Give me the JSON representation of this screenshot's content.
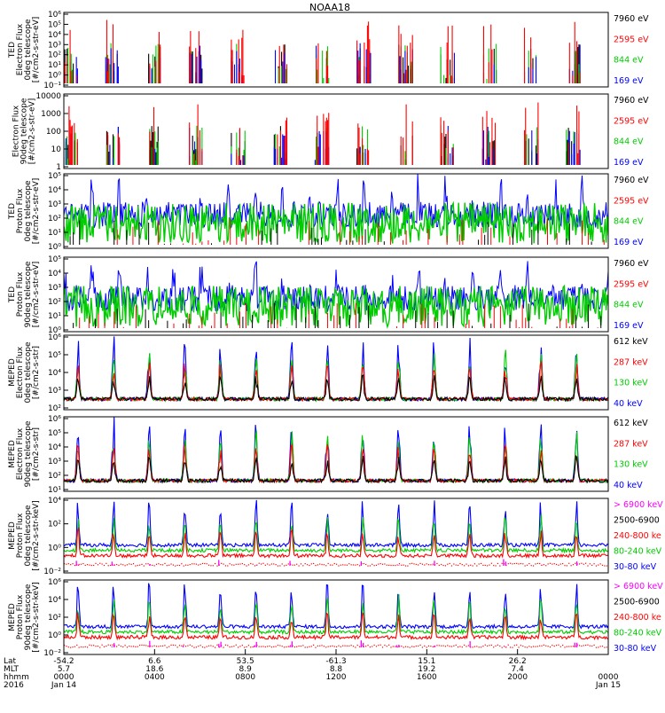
{
  "chart_data": {
    "type": "line",
    "title": "NOAA18",
    "panels": [
      {
        "ylabel": [
          "TED",
          "Electron Flux",
          "0deg telescope",
          "[#/cm2-s-str-eV]"
        ],
        "yticks": [
          "10⁻¹",
          "10⁰",
          "10¹",
          "10²",
          "10³",
          "10⁴",
          "10⁵",
          "10⁶"
        ],
        "y_log_range": [
          -1,
          6
        ],
        "series": [
          {
            "name": "7960 eV",
            "color": "#000000"
          },
          {
            "name": "2595 eV",
            "color": "#ff0000"
          },
          {
            "name": "844 eV",
            "color": "#00cc00"
          },
          {
            "name": "169 eV",
            "color": "#0000ff"
          }
        ],
        "style": "spikes"
      },
      {
        "ylabel": [
          "Electron Flux",
          "90deg telescope",
          "[#/cm2-s-str-eV]"
        ],
        "yticks": [
          "1",
          "10",
          "100",
          "1000",
          "10000"
        ],
        "y_log_range": [
          0,
          4
        ],
        "series": [
          {
            "name": "7960 eV",
            "color": "#000000"
          },
          {
            "name": "2595 eV",
            "color": "#ff0000"
          },
          {
            "name": "844 eV",
            "color": "#00cc00"
          },
          {
            "name": "169 eV",
            "color": "#0000ff"
          }
        ],
        "style": "spikes"
      },
      {
        "ylabel": [
          "TED",
          "Proton Flux",
          "0deg telescope",
          "[#/cm2-s-str-eV]"
        ],
        "yticks": [
          "10⁰",
          "10¹",
          "10²",
          "10³",
          "10⁴",
          "10⁵"
        ],
        "y_log_range": [
          0,
          5
        ],
        "series": [
          {
            "name": "7960 eV",
            "color": "#000000"
          },
          {
            "name": "2595 eV",
            "color": "#ff0000"
          },
          {
            "name": "844 eV",
            "color": "#00cc00"
          },
          {
            "name": "169 eV",
            "color": "#0000ff"
          }
        ],
        "style": "dense"
      },
      {
        "ylabel": [
          "TED",
          "Proton Flux",
          "90deg telescope",
          "[#/cm2-s-str-eV]"
        ],
        "yticks": [
          "10⁰",
          "10¹",
          "10²",
          "10³",
          "10⁴",
          "10⁵"
        ],
        "y_log_range": [
          0,
          5
        ],
        "series": [
          {
            "name": "7960 eV",
            "color": "#000000"
          },
          {
            "name": "2595 eV",
            "color": "#ff0000"
          },
          {
            "name": "844 eV",
            "color": "#00cc00"
          },
          {
            "name": "169 eV",
            "color": "#0000ff"
          }
        ],
        "style": "dense"
      },
      {
        "ylabel": [
          "MEPED",
          "Electron Flux",
          "0deg telescope",
          "[#/cm2-s-str]"
        ],
        "yticks": [
          "10²",
          "10³",
          "10⁴",
          "10⁵",
          "10⁶"
        ],
        "y_log_range": [
          2,
          6
        ],
        "series": [
          {
            "name": "612 keV",
            "color": "#000000"
          },
          {
            "name": "287 keV",
            "color": "#ff0000"
          },
          {
            "name": "130 keV",
            "color": "#00cc00"
          },
          {
            "name": "40 keV",
            "color": "#0000ff"
          }
        ],
        "style": "peaks"
      },
      {
        "ylabel": [
          "MEPED",
          "Electron Flux",
          "90deg telescope",
          "[#/cm2-s-str]"
        ],
        "yticks": [
          "10¹",
          "10²",
          "10³",
          "10⁴",
          "10⁵",
          "10⁶"
        ],
        "y_log_range": [
          1,
          6
        ],
        "series": [
          {
            "name": "612 keV",
            "color": "#000000"
          },
          {
            "name": "287 keV",
            "color": "#ff0000"
          },
          {
            "name": "130 keV",
            "color": "#00cc00"
          },
          {
            "name": "40 keV",
            "color": "#0000ff"
          }
        ],
        "style": "peaks"
      },
      {
        "ylabel": [
          "MEPED",
          "Proton Flux",
          "0deg telescope",
          "[#/cm2-s-str-keV]"
        ],
        "yticks": [
          "10⁻²",
          "10⁰",
          "10²",
          "10⁴"
        ],
        "y_log_range": [
          -3,
          5
        ],
        "series": [
          {
            "name": "> 6900 keV",
            "color": "#ff00ff"
          },
          {
            "name": "2500-6900",
            "color": "#000000"
          },
          {
            "name": "240-800 ke",
            "color": "#ff0000"
          },
          {
            "name": "80-240 keV",
            "color": "#00cc00"
          },
          {
            "name": "30-80 keV",
            "color": "#0000ff"
          }
        ],
        "style": "proton"
      },
      {
        "ylabel": [
          "MEPED",
          "Proton Flux",
          "90deg telescope",
          "[#/cm2-s-str-keV]"
        ],
        "yticks": [
          "10⁻²",
          "10⁰",
          "10²",
          "10⁴",
          "10⁶"
        ],
        "y_log_range": [
          -3,
          6
        ],
        "series": [
          {
            "name": "> 6900 keV",
            "color": "#ff00ff"
          },
          {
            "name": "2500-6900",
            "color": "#000000"
          },
          {
            "name": "240-800 ke",
            "color": "#ff0000"
          },
          {
            "name": "80-240 keV",
            "color": "#00cc00"
          },
          {
            "name": "30-80 keV",
            "color": "#0000ff"
          }
        ],
        "style": "proton"
      }
    ],
    "x_axis": {
      "row_labels": [
        "Lat",
        "MLT",
        "hhmm",
        "2016"
      ],
      "ticks": [
        {
          "lat": "-54.2",
          "mlt": "5.7",
          "hhmm": "0000",
          "date": "Jan 14"
        },
        {
          "lat": "6.6",
          "mlt": "18.6",
          "hhmm": "0400",
          "date": ""
        },
        {
          "lat": "53.5",
          "mlt": "8.9",
          "hhmm": "0800",
          "date": ""
        },
        {
          "lat": "-61.3",
          "mlt": "8.8",
          "hhmm": "1200",
          "date": ""
        },
        {
          "lat": "15.1",
          "mlt": "19.2",
          "hhmm": "1600",
          "date": ""
        },
        {
          "lat": "26.2",
          "mlt": "7.4",
          "hhmm": "2000",
          "date": ""
        },
        {
          "lat": "",
          "mlt": "",
          "hhmm": "0000",
          "date": "Jan 15"
        }
      ]
    }
  }
}
